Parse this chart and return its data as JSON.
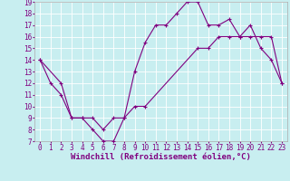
{
  "xlabel": "Windchill (Refroidissement éolien,°C)",
  "background_color": "#c8eef0",
  "line_color": "#800080",
  "grid_color": "#ffffff",
  "xlim": [
    -0.5,
    23.5
  ],
  "ylim": [
    7,
    19
  ],
  "yticks": [
    7,
    8,
    9,
    10,
    11,
    12,
    13,
    14,
    15,
    16,
    17,
    18,
    19
  ],
  "xticks": [
    0,
    1,
    2,
    3,
    4,
    5,
    6,
    7,
    8,
    9,
    10,
    11,
    12,
    13,
    14,
    15,
    16,
    17,
    18,
    19,
    20,
    21,
    22,
    23
  ],
  "main_x": [
    0,
    1,
    2,
    3,
    4,
    5,
    6,
    7,
    8,
    9,
    10,
    11,
    12,
    13,
    14,
    15,
    16,
    17,
    18,
    19,
    20,
    21,
    22,
    23
  ],
  "main_y": [
    14,
    12,
    11,
    9,
    9,
    8,
    7,
    7,
    9,
    13,
    15.5,
    17,
    17,
    18,
    19,
    19,
    17,
    17,
    17.5,
    16,
    17,
    15,
    14,
    12
  ],
  "trend_x": [
    0,
    2,
    3,
    4,
    5,
    6,
    7,
    8,
    9,
    10,
    15,
    16,
    17,
    18,
    19,
    20,
    21,
    22,
    23
  ],
  "trend_y": [
    14,
    12,
    9,
    9,
    9,
    8,
    9,
    9,
    10,
    10,
    15,
    15,
    16,
    16,
    16,
    16,
    16,
    16,
    12
  ],
  "linewidth": 0.8,
  "markersize": 3,
  "tick_fontsize": 5.5,
  "xlabel_fontsize": 6.5
}
